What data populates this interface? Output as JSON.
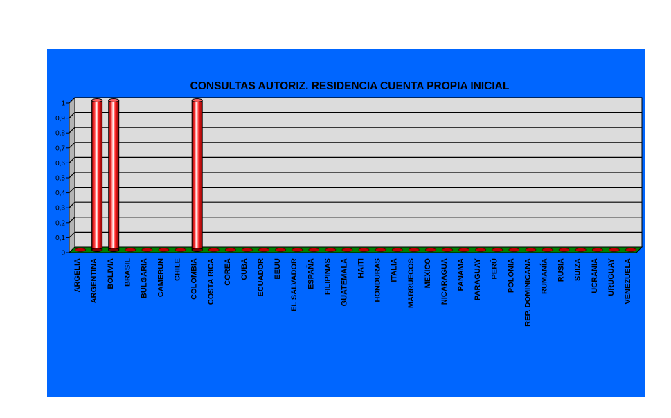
{
  "chart_data": {
    "type": "bar",
    "title": "CONSULTAS AUTORIZ. RESIDENCIA CUENTA PROPIA INICIAL",
    "xlabel": "",
    "ylabel": "",
    "ylim": [
      0,
      1
    ],
    "yticks": [
      "0",
      "0,1",
      "0,2",
      "0,3",
      "0,4",
      "0,5",
      "0,6",
      "0,7",
      "0,8",
      "0,9",
      "1"
    ],
    "grid": true,
    "categories": [
      "ARGELIA",
      "ARGENTINA",
      "BOLIVIA",
      "BRASIL",
      "BULGARIA",
      "CAMERUN",
      "CHILE",
      "COLOMBIA",
      "COSTA RICA",
      "COREA",
      "CUBA",
      "ECUADOR",
      "EEUU",
      "EL SALVADOR",
      "ESPAÑA",
      "FILIPINAS",
      "GUATEMALA",
      "HAITI",
      "HONDURAS",
      "ITALIA",
      "MARRUECOS",
      "MEXICO",
      "NICARAGUA",
      "PANAMA",
      "PARAGUAY",
      "PERÚ",
      "POLONIA",
      "REP. DOMINICANA",
      "RUMANÍA",
      "RUSIA",
      "SUIZA",
      "UCRANIA",
      "URUGUAY",
      "VENEZUELA"
    ],
    "values": [
      0,
      1,
      1,
      0,
      0,
      0,
      0,
      1,
      0,
      0,
      0,
      0,
      0,
      0,
      0,
      0,
      0,
      0,
      0,
      0,
      0,
      0,
      0,
      0,
      0,
      0,
      0,
      0,
      0,
      0,
      0,
      0,
      0,
      0
    ],
    "colors": {
      "panel_background": "#0066ff",
      "plot_background": "#dcdcdc",
      "floor": "#008000",
      "bar": "#ff0000"
    }
  }
}
